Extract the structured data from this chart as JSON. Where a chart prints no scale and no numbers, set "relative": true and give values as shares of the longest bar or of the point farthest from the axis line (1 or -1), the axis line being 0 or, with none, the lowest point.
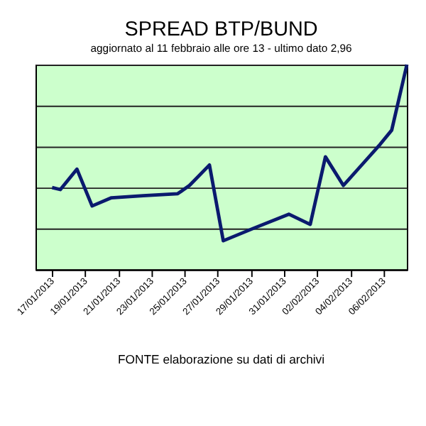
{
  "chart_data": {
    "type": "line",
    "title": "SPREAD  BTP/BUND",
    "subtitle": "aggiornato al 11 febbraio alle ore 13 - ultimo dato 2,96",
    "relative": true,
    "x": [
      "2013-01-17T00:00",
      "2013-01-17T12:00",
      "2013-01-18T12:00",
      "2013-01-19T10:00",
      "2013-01-20T14:00",
      "2013-01-22T12:00",
      "2013-01-24T14:00",
      "2013-01-25T07:00",
      "2013-01-26T12:00",
      "2013-01-27T08:00",
      "2013-01-29T03:00",
      "2013-01-31T07:00",
      "2013-02-01T14:00",
      "2013-02-02T12:00",
      "2013-02-03T14:00",
      "2013-02-05T19:00",
      "2013-02-06T12:00",
      "2013-02-07T10:00"
    ],
    "series": [
      {
        "color": "#0a1a6e",
        "values": [
          0.4,
          0.39,
          0.49,
          0.31,
          0.35,
          0.36,
          0.37,
          0.41,
          0.51,
          0.14,
          0.2,
          0.27,
          0.22,
          0.55,
          0.41,
          0.61,
          0.68,
          1.0
        ]
      }
    ],
    "xticks": [
      {
        "value": "2013-01-17",
        "label": "17/01/2013"
      },
      {
        "value": "2013-01-19",
        "label": "19/01/2013"
      },
      {
        "value": "2013-01-21",
        "label": "21/01/2013"
      },
      {
        "value": "2013-01-23",
        "label": "23/01/2013"
      },
      {
        "value": "2013-01-25",
        "label": "25/01/2013"
      },
      {
        "value": "2013-01-27",
        "label": "27/01/2013"
      },
      {
        "value": "2013-01-29",
        "label": "29/01/2013"
      },
      {
        "value": "2013-01-31",
        "label": "31/01/2013"
      },
      {
        "value": "2013-02-02",
        "label": "02/02/2013"
      },
      {
        "value": "2013-02-04",
        "label": "04/02/2013"
      },
      {
        "value": "2013-02-06",
        "label": "06/02/2013"
      }
    ],
    "xlim": [
      "2013-01-16",
      "2013-02-07T10:00"
    ],
    "grid": "y",
    "marker": "none",
    "line_style": "solid",
    "annotations": [
      "FONTE elaborazione su dati di archivi"
    ]
  }
}
